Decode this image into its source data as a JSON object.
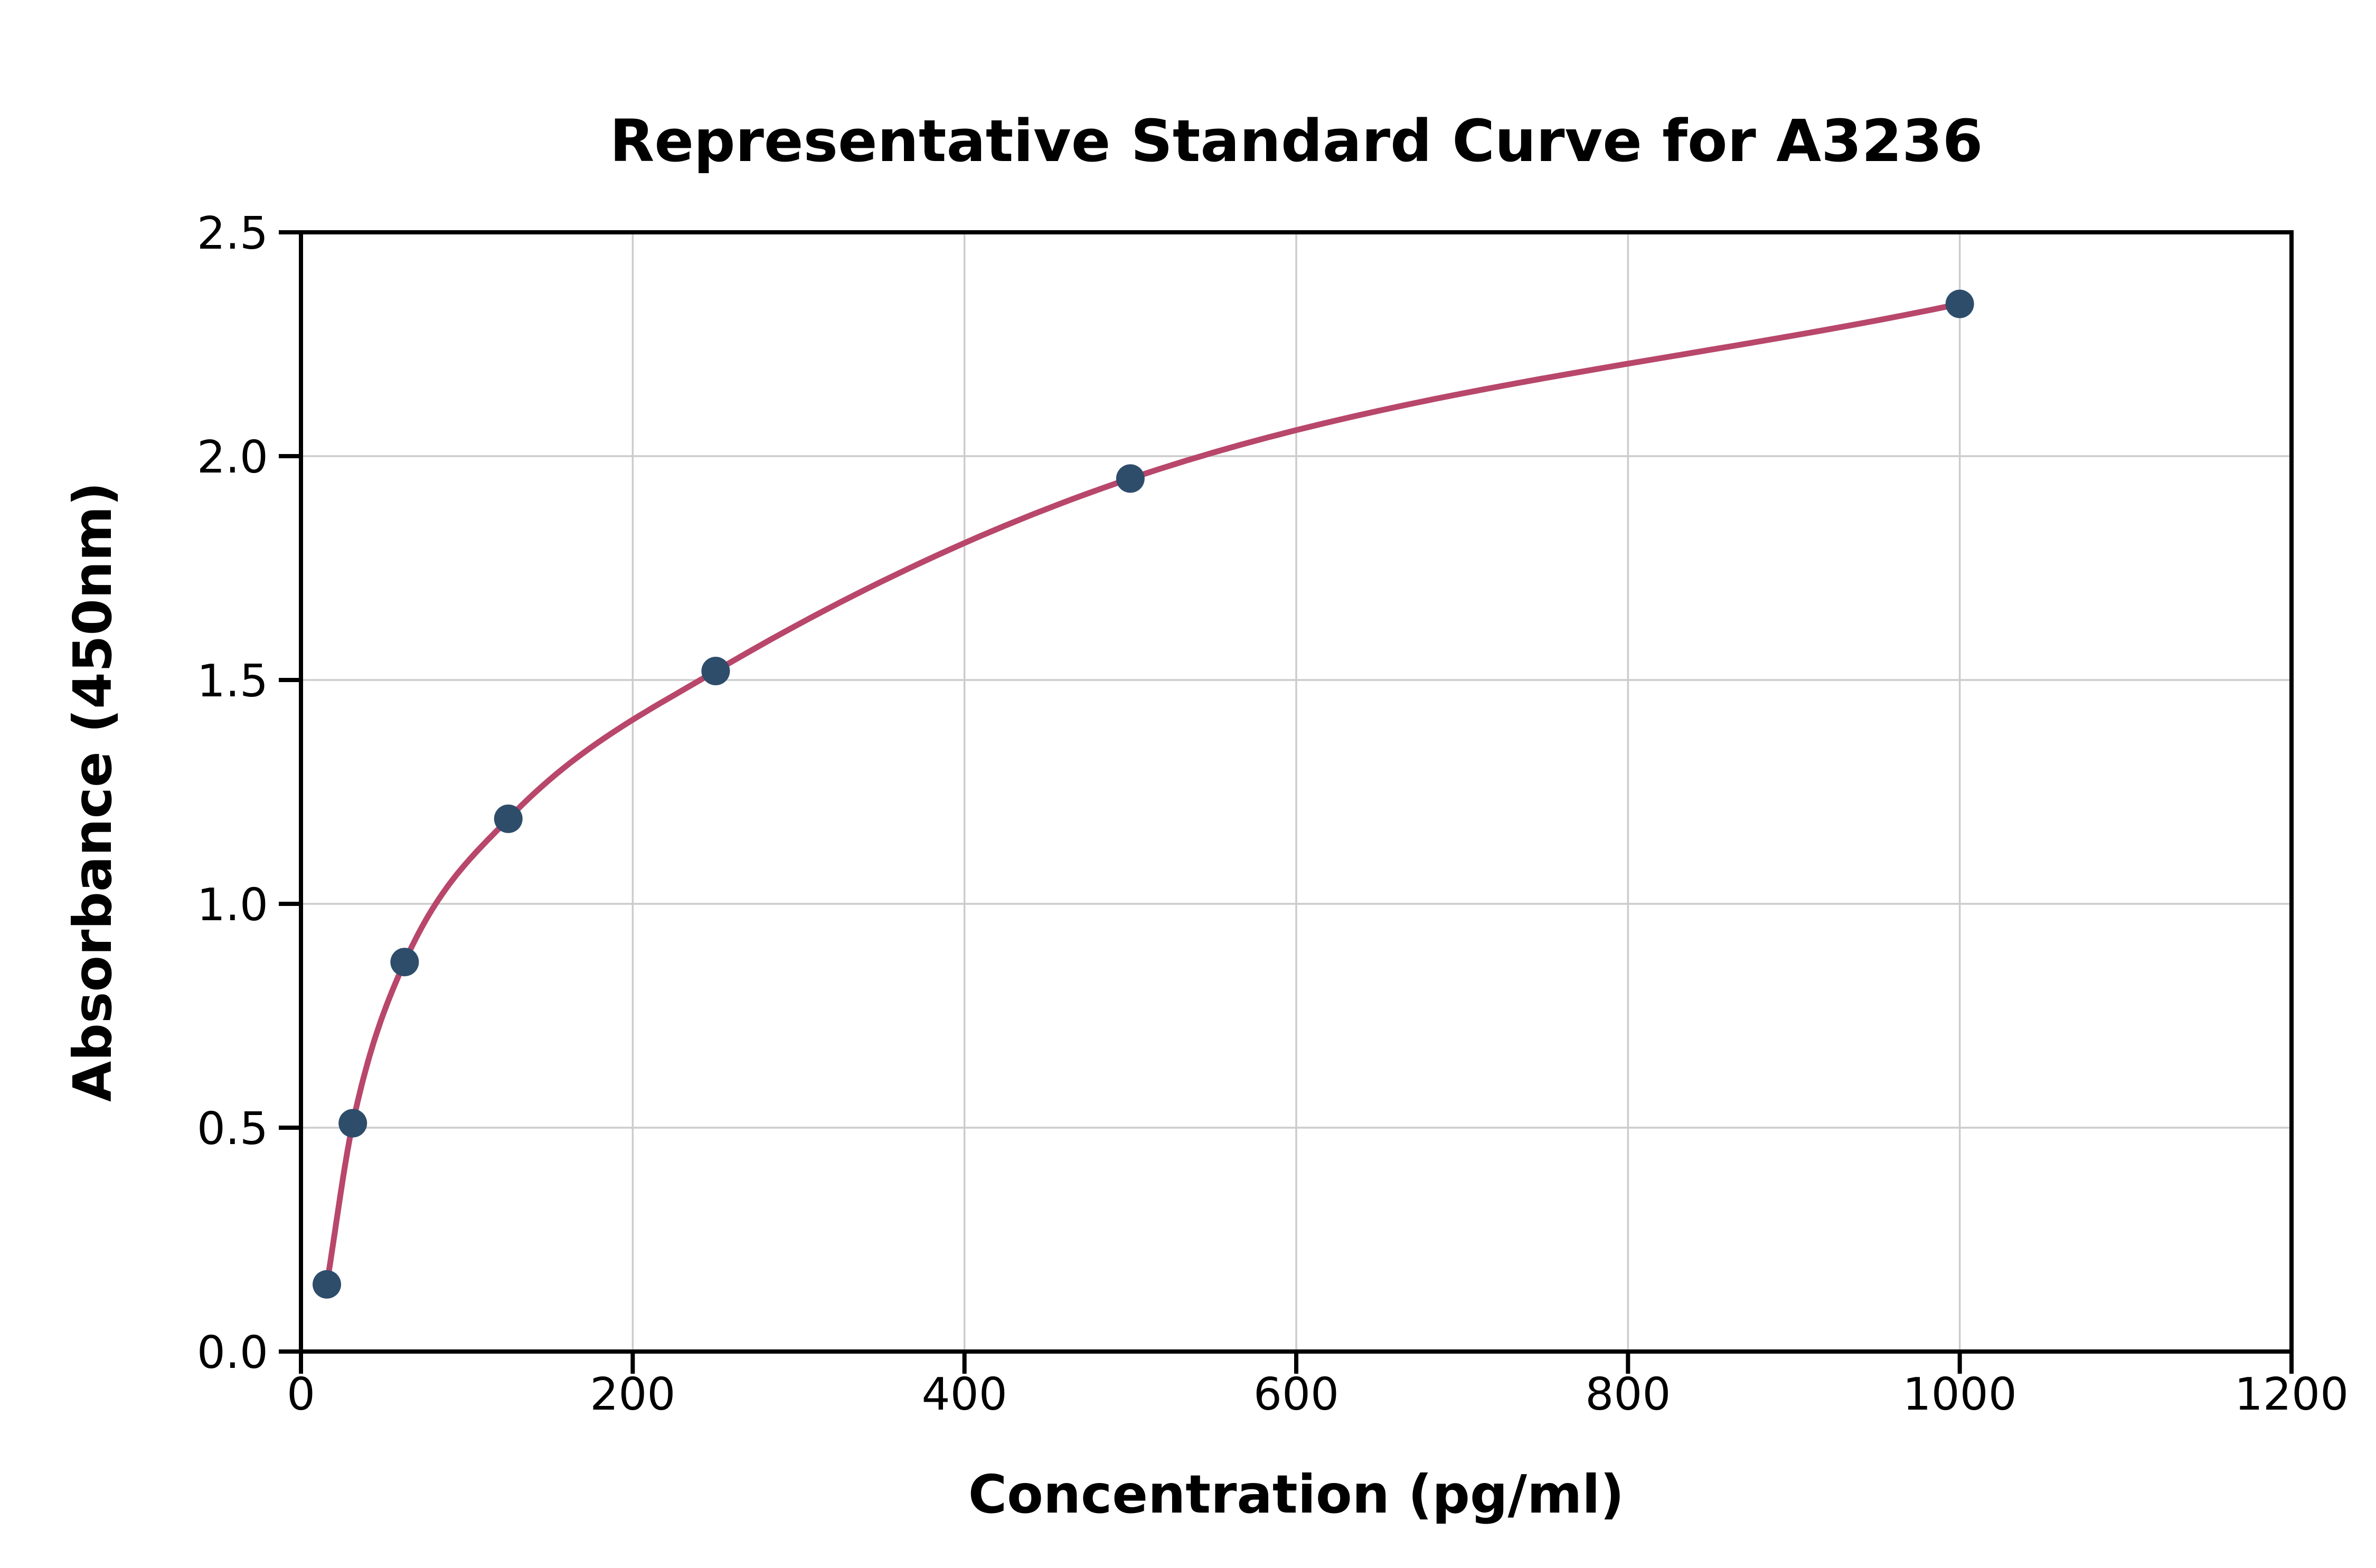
{
  "chart_data": {
    "type": "scatter",
    "title": "Representative Standard Curve for A3236",
    "xlabel": "Concentration (pg/ml)",
    "ylabel": "Absorbance (450nm)",
    "x": [
      15.6,
      31.25,
      62.5,
      125,
      250,
      500,
      1000
    ],
    "y": [
      0.15,
      0.51,
      0.87,
      1.19,
      1.52,
      1.95,
      2.34
    ],
    "xlim": [
      0,
      1200
    ],
    "ylim": [
      0,
      2.5
    ],
    "x_ticks": [
      0,
      200,
      400,
      600,
      800,
      1000,
      1200
    ],
    "x_tick_labels": [
      "0",
      "200",
      "400",
      "600",
      "800",
      "1000",
      "1200"
    ],
    "y_ticks": [
      0,
      0.5,
      1,
      1.5,
      2,
      2.5
    ],
    "y_tick_labels": [
      "0.0",
      "0.5",
      "1.0",
      "1.5",
      "2.0",
      "2.5"
    ],
    "grid": true,
    "legend": "none",
    "curve_color": "#b8476b",
    "point_color": "#2e4d6b",
    "grid_color": "#cccccc",
    "axis_color": "#000000"
  }
}
